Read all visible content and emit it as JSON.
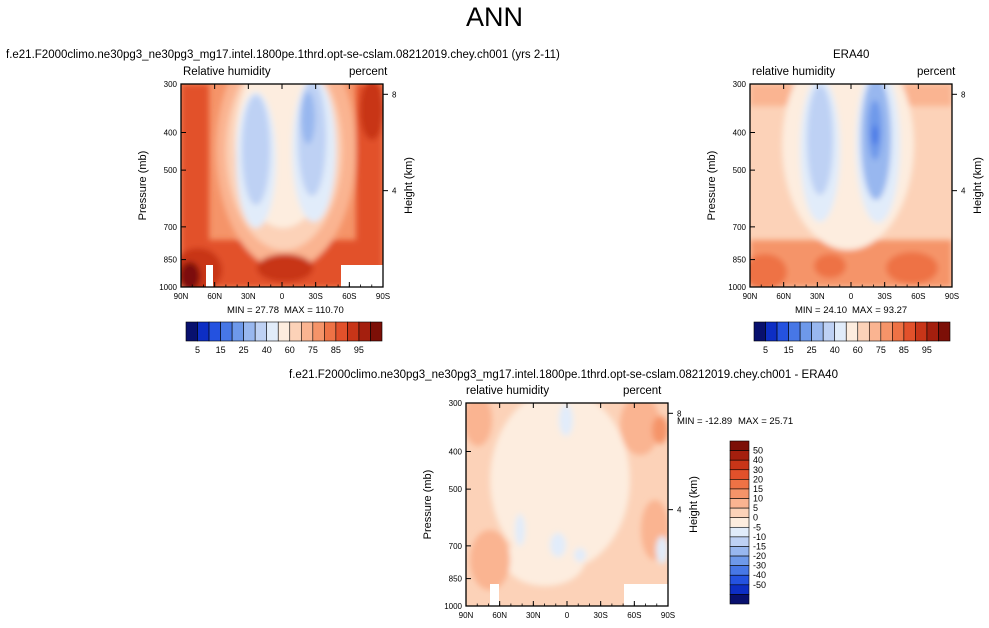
{
  "page_title": "ANN",
  "colors": {
    "rh_scale": [
      "#08106e",
      "#0d2ec4",
      "#2452e0",
      "#4777e6",
      "#6e99ea",
      "#98b7ef",
      "#bed1f4",
      "#e1ecfa",
      "#fdeddf",
      "#fcd2b8",
      "#fab491",
      "#f59469",
      "#ee7245",
      "#e2512b",
      "#c83518",
      "#a41f0e",
      "#7c0f07"
    ],
    "diff_scale": [
      "#08106e",
      "#0d2ec4",
      "#2452e0",
      "#4777e6",
      "#6e99ea",
      "#98b7ef",
      "#bed1f4",
      "#e1ecfa",
      "#fdeddf",
      "#fcd2b8",
      "#fab491",
      "#f59469",
      "#ee7245",
      "#e2512b",
      "#c83518",
      "#a41f0e",
      "#7c0f07"
    ]
  },
  "chart_data": [
    {
      "type": "heatmap",
      "title": "f.e21.F2000climo.ne30pg3_ne30pg3_mg17.intel.1800pe.1thrd.opt-se-cslam.08212019.chey.ch001 (yrs 2-11)",
      "left_label": "Relative humidity",
      "right_label": "percent",
      "ylabel": "Pressure (mb)",
      "ylabel_right": "Height (km)",
      "xticks": [
        "90N",
        "60N",
        "30N",
        "0",
        "30S",
        "60S",
        "90S"
      ],
      "yticks": [
        "300",
        "400",
        "500",
        "700",
        "850",
        "1000"
      ],
      "height_ticks": [
        "8",
        "4"
      ],
      "min_label": "MIN =  27.78",
      "max_label": "MAX = 110.70",
      "colorbar_labels": [
        "5",
        "15",
        "25",
        "40",
        "60",
        "75",
        "85",
        "95"
      ]
    },
    {
      "type": "heatmap",
      "title": "ERA40",
      "left_label": "relative humidity",
      "right_label": "percent",
      "ylabel": "Pressure (mb)",
      "ylabel_right": "Height (km)",
      "xticks": [
        "90N",
        "60N",
        "30N",
        "0",
        "30S",
        "60S",
        "90S"
      ],
      "yticks": [
        "300",
        "400",
        "500",
        "700",
        "850",
        "1000"
      ],
      "height_ticks": [
        "8",
        "4"
      ],
      "min_label": "MIN =  24.10",
      "max_label": "MAX =  93.27",
      "colorbar_labels": [
        "5",
        "15",
        "25",
        "40",
        "60",
        "75",
        "85",
        "95"
      ]
    },
    {
      "type": "heatmap",
      "title": "f.e21.F2000climo.ne30pg3_ne30pg3_mg17.intel.1800pe.1thrd.opt-se-cslam.08212019.chey.ch001 - ERA40",
      "left_label": "relative humidity",
      "right_label": "percent",
      "ylabel": "Pressure (mb)",
      "ylabel_right": "Height (km)",
      "xticks": [
        "90N",
        "60N",
        "30N",
        "0",
        "30S",
        "60S",
        "90S"
      ],
      "yticks": [
        "300",
        "400",
        "500",
        "700",
        "850",
        "1000"
      ],
      "height_ticks": [
        "8",
        "4"
      ],
      "min_label": "MIN = -12.89",
      "max_label": "MAX =  25.71",
      "colorbar_labels": [
        "50",
        "40",
        "30",
        "20",
        "15",
        "10",
        "5",
        "0",
        "-5",
        "-10",
        "-15",
        "-20",
        "-30",
        "-40",
        "-50"
      ]
    }
  ]
}
